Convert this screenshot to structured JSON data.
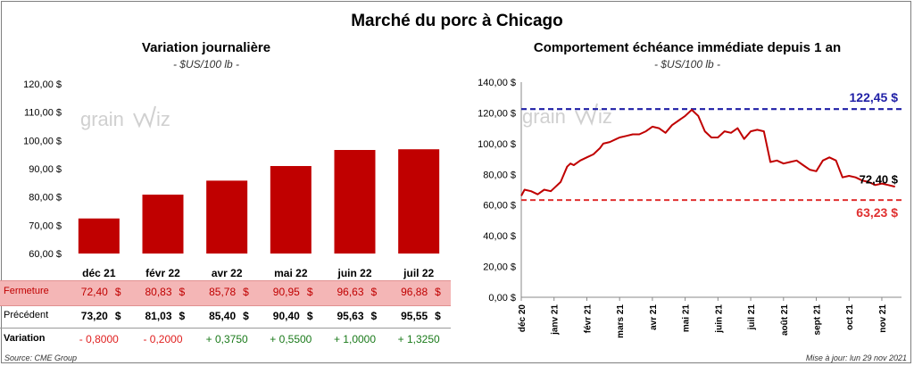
{
  "title": "Marché du porc à Chicago",
  "left": {
    "title": "Variation journalière",
    "unit": "- $US/100 lb -",
    "table": {
      "rows": [
        {
          "label": "Fermeture",
          "values": [
            "72,40",
            "80,83",
            "85,78",
            "90,95",
            "96,63",
            "96,88"
          ],
          "unit": "$"
        },
        {
          "label": "Précédent",
          "values": [
            "73,20",
            "81,03",
            "85,40",
            "90,40",
            "95,63",
            "95,55"
          ],
          "unit": "$"
        },
        {
          "label": "Variation",
          "values": [
            "- 0,8000",
            "- 0,2000",
            "+ 0,3750",
            "+ 0,5500",
            "+ 1,0000",
            "+ 1,3250"
          ]
        }
      ]
    }
  },
  "right": {
    "title": "Comportement  échéance immédiate depuis 1 an",
    "unit": "- $US/100 lb -"
  },
  "watermark": {
    "text_left": "grain",
    "text_right": "iz"
  },
  "footer": {
    "source": "Source: CME Group",
    "updated": "Mise à jour: lun 29 nov 2021"
  },
  "colors": {
    "bar": "#c00000",
    "line": "#c00000",
    "high": "#1f1fa6",
    "low": "#e03030",
    "pos": "#1a7a1a",
    "neg": "#e02020",
    "band": "#f4b6b6"
  },
  "chart_data": [
    {
      "type": "bar",
      "title": "Variation journalière",
      "ylabel": "$US/100 lb",
      "categories": [
        "déc 21",
        "févr 22",
        "avr 22",
        "mai 22",
        "juin 22",
        "juil 22"
      ],
      "values": [
        72.4,
        80.83,
        85.78,
        90.95,
        96.63,
        96.88
      ],
      "ylim": [
        60,
        120
      ],
      "yticks": [
        60,
        70,
        80,
        90,
        100,
        110,
        120
      ],
      "ytick_labels": [
        "60,00 $",
        "70,00 $",
        "80,00 $",
        "90,00 $",
        "100,00 $",
        "110,00 $",
        "120,00 $"
      ]
    },
    {
      "type": "line",
      "title": "Comportement  échéance immédiate depuis 1 an",
      "ylabel": "$US/100 lb",
      "ylim": [
        0,
        140
      ],
      "yticks": [
        0,
        20,
        40,
        60,
        80,
        100,
        120,
        140
      ],
      "ytick_labels": [
        "0,00 $",
        "20,00 $",
        "40,00 $",
        "60,00 $",
        "80,00 $",
        "100,00 $",
        "120,00 $",
        "140,00 $"
      ],
      "xticks": [
        "déc 20",
        "janv 21",
        "févr 21",
        "mars 21",
        "avr 21",
        "mai 21",
        "juin 21",
        "juil 21",
        "août 21",
        "sept 21",
        "oct 21",
        "nov 21"
      ],
      "series": [
        {
          "name": "Échéance immédiate",
          "x_months": [
            0,
            0.1,
            0.3,
            0.5,
            0.7,
            0.9,
            1.0,
            1.2,
            1.4,
            1.5,
            1.6,
            1.8,
            2.0,
            2.2,
            2.4,
            2.5,
            2.7,
            2.9,
            3.0,
            3.2,
            3.4,
            3.6,
            3.8,
            4.0,
            4.2,
            4.4,
            4.6,
            4.8,
            5.0,
            5.2,
            5.4,
            5.6,
            5.8,
            6.0,
            6.2,
            6.4,
            6.6,
            6.8,
            7.0,
            7.2,
            7.4,
            7.6,
            7.8,
            8.0,
            8.2,
            8.4,
            8.6,
            8.8,
            9.0,
            9.2,
            9.4,
            9.6,
            9.8,
            10.0,
            10.2,
            10.4,
            10.6,
            10.8,
            11.0,
            11.2,
            11.4
          ],
          "values": [
            66,
            70,
            69,
            67,
            70,
            69,
            71,
            75,
            85,
            87,
            86,
            89,
            91,
            93,
            97,
            100,
            101,
            103,
            104,
            105,
            106,
            106,
            108,
            111,
            110,
            107,
            112,
            115,
            118,
            122,
            118,
            108,
            104,
            104,
            108,
            107,
            110,
            103,
            108,
            109,
            108,
            88,
            89,
            87,
            88,
            89,
            86,
            83,
            82,
            89,
            91,
            89,
            78,
            79,
            78,
            76,
            75,
            73,
            74,
            73,
            72
          ]
        }
      ],
      "reference_lines": [
        {
          "label": "122,45 $",
          "value": 122.45
        },
        {
          "label": "63,23 $",
          "value": 63.23
        }
      ],
      "annotations": [
        {
          "label": "72,40 $",
          "value": 72.4
        }
      ]
    }
  ]
}
